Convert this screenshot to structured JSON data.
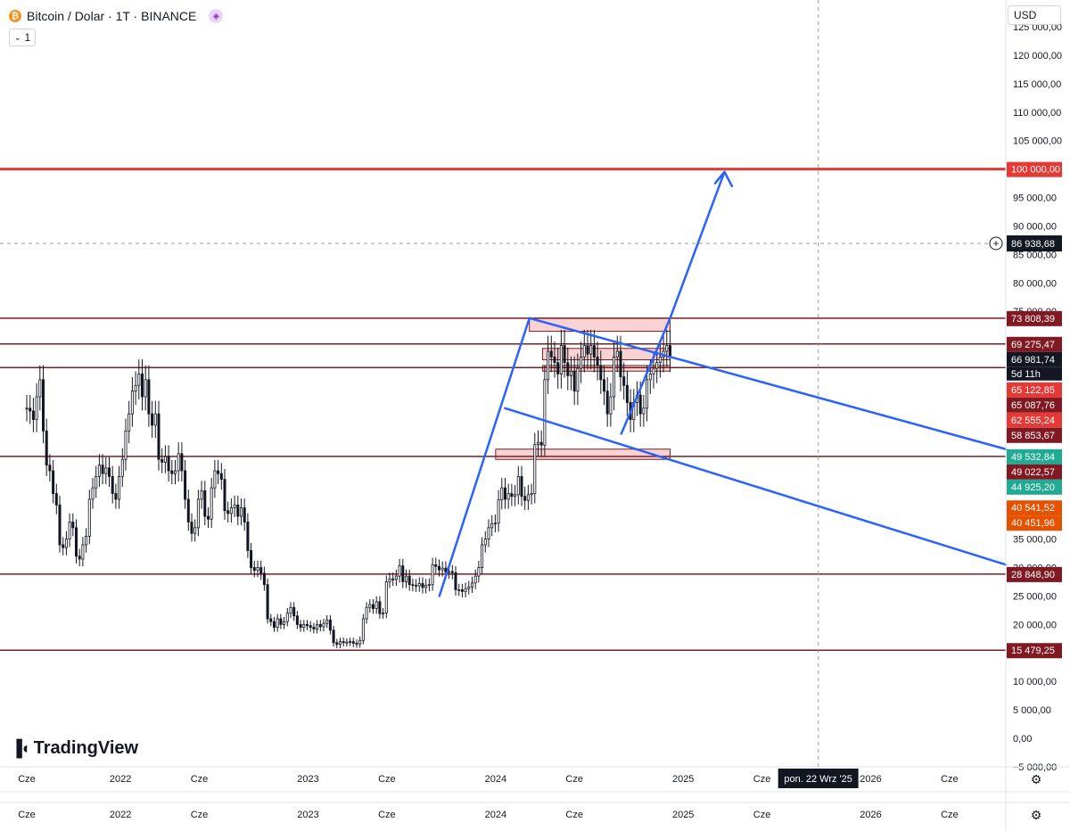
{
  "header": {
    "symbol_title": "Bitcoin / Dolar · 1T · BINANCE",
    "interval_chip": "1",
    "currency": "USD"
  },
  "branding": {
    "logo_text": "TradingView"
  },
  "crosshair": {
    "price_label": "86 938,68",
    "time_label": "pon. 22 Wrz '25"
  },
  "countdown": "5d 11h",
  "colors": {
    "up": "#131722",
    "down": "#131722",
    "resistance_red": "#e53935",
    "level_dark": "#7b1f1f",
    "channel_blue": "#2962ff",
    "zone_fill": "#f8c8c8",
    "price_tag_dark": "#131722",
    "tag_green": "#22ab94",
    "tag_orange": "#e65100",
    "tag_red": "#e53935",
    "tag_maroon": "#801922"
  },
  "chart_data": {
    "type": "candlestick",
    "title": "Bitcoin / Dolar · 1T · BINANCE",
    "timeframe": "1W",
    "ylim": [
      -5000,
      125000
    ],
    "y_ticks": [
      {
        "value": 125000,
        "label": "125 000,00"
      },
      {
        "value": 120000,
        "label": "120 000,00"
      },
      {
        "value": 115000,
        "label": "115 000,00"
      },
      {
        "value": 110000,
        "label": "110 000,00"
      },
      {
        "value": 105000,
        "label": "105 000,00"
      },
      {
        "value": 95000,
        "label": "95 000,00"
      },
      {
        "value": 90000,
        "label": "90 000,00"
      },
      {
        "value": 85000,
        "label": "85 000,00"
      },
      {
        "value": 80000,
        "label": "80 000,00"
      },
      {
        "value": 75000,
        "label": "75 000,00"
      },
      {
        "value": 35000,
        "label": "35 000,00"
      },
      {
        "value": 30000,
        "label": "30 000,00"
      },
      {
        "value": 25000,
        "label": "25 000,00"
      },
      {
        "value": 20000,
        "label": "20 000,00"
      },
      {
        "value": 10000,
        "label": "10 000,00"
      },
      {
        "value": 5000,
        "label": "5 000,00"
      },
      {
        "value": 0,
        "label": "0,00"
      },
      {
        "value": -5000,
        "label": "−5 000,00"
      }
    ],
    "x_ticks": [
      {
        "t": 2021.5,
        "label": "Cze"
      },
      {
        "t": 2022.0,
        "label": "2022"
      },
      {
        "t": 2022.42,
        "label": "Cze"
      },
      {
        "t": 2023.0,
        "label": "2023"
      },
      {
        "t": 2023.42,
        "label": "Cze"
      },
      {
        "t": 2024.0,
        "label": "2024"
      },
      {
        "t": 2024.42,
        "label": "Cze"
      },
      {
        "t": 2025.0,
        "label": "2025"
      },
      {
        "t": 2025.42,
        "label": "Cze"
      },
      {
        "t": 2026.0,
        "label": "2026"
      },
      {
        "t": 2026.42,
        "label": "Cze"
      }
    ],
    "x_ticks_lower": [
      {
        "t": 2021.5,
        "label": "Cze"
      },
      {
        "t": 2022.0,
        "label": "2022"
      },
      {
        "t": 2022.42,
        "label": "Cze"
      },
      {
        "t": 2023.0,
        "label": "2023"
      },
      {
        "t": 2023.42,
        "label": "Cze"
      },
      {
        "t": 2024.0,
        "label": "2024"
      },
      {
        "t": 2024.42,
        "label": "Cze"
      },
      {
        "t": 2025.0,
        "label": "2025"
      },
      {
        "t": 2025.42,
        "label": "Cze"
      },
      {
        "t": 2026.0,
        "label": "2026"
      },
      {
        "t": 2026.42,
        "label": "Cze"
      }
    ],
    "xlim": [
      2021.5,
      2026.72
    ],
    "price_tags": [
      {
        "value": 100000,
        "label": "100 000,00",
        "style": "red"
      },
      {
        "value": 73808.39,
        "label": "73 808,39",
        "style": "maroon"
      },
      {
        "value": 69275.47,
        "label": "69 275,47",
        "style": "maroon"
      },
      {
        "value": 66981.74,
        "label": "66 981,74",
        "style": "dark"
      },
      {
        "value": 65122.85,
        "label": "65 122,85",
        "style": "red"
      },
      {
        "value": 65087.76,
        "label": "65 087,76",
        "style": "maroon"
      },
      {
        "value": 62555.24,
        "label": "62 555,24",
        "style": "red"
      },
      {
        "value": 58853.67,
        "label": "58 853,67",
        "style": "maroon"
      },
      {
        "value": 49532.84,
        "label": "49 532,84",
        "style": "green"
      },
      {
        "value": 49022.57,
        "label": "49 022,57",
        "style": "maroon"
      },
      {
        "value": 44925.2,
        "label": "44 925,20",
        "style": "green"
      },
      {
        "value": 40541.52,
        "label": "40 541,52",
        "style": "orange"
      },
      {
        "value": 40451.96,
        "label": "40 451,96",
        "style": "orange"
      },
      {
        "value": 28848.9,
        "label": "28 848,90",
        "style": "maroon"
      },
      {
        "value": 15479.25,
        "label": "15 479,25",
        "style": "maroon"
      }
    ],
    "horizontal_levels": [
      {
        "value": 100000,
        "style": "red"
      },
      {
        "value": 73808.39,
        "style": "maroon"
      },
      {
        "value": 69275.47,
        "style": "maroon"
      },
      {
        "value": 65122.85,
        "style": "maroon"
      },
      {
        "value": 49532.84,
        "style": "maroon"
      },
      {
        "value": 28848.9,
        "style": "maroon"
      },
      {
        "value": 15479.25,
        "style": "maroon"
      }
    ],
    "zones": [
      {
        "t0": 2024.18,
        "t1": 2024.93,
        "v0": 71500,
        "v1": 73808
      },
      {
        "t0": 2024.25,
        "t1": 2024.93,
        "v0": 66500,
        "v1": 68500
      },
      {
        "t0": 2024.25,
        "t1": 2024.93,
        "v0": 64500,
        "v1": 65500
      },
      {
        "t0": 2024.0,
        "t1": 2024.93,
        "v0": 49000,
        "v1": 50800
      }
    ],
    "trendlines": [
      {
        "t0": 2023.7,
        "v0": 25000,
        "t1": 2024.18,
        "v1": 73808
      },
      {
        "t0": 2024.18,
        "v0": 73808,
        "t1": 2026.72,
        "v1": 50800
      },
      {
        "t0": 2024.05,
        "v0": 58000,
        "t1": 2026.72,
        "v1": 30500
      },
      {
        "t0": 2024.67,
        "v0": 53500,
        "t1": 2024.93,
        "v1": 73800
      },
      {
        "t0": 2024.93,
        "v0": 73800,
        "t1": 2025.22,
        "v1": 99500,
        "arrow": true
      },
      {
        "t0": 2025.22,
        "v0": 99500,
        "t1": 2025.17,
        "v1": 97500
      },
      {
        "t0": 2025.22,
        "v0": 99500,
        "t1": 2025.26,
        "v1": 97000
      }
    ],
    "crosshair": {
      "t": 2025.72,
      "value": 86938.68
    },
    "candles_weekly_close": [
      58000,
      57500,
      56000,
      60000,
      63000,
      54000,
      48000,
      47000,
      43000,
      41000,
      34000,
      33500,
      35000,
      38000,
      37000,
      32000,
      31500,
      34000,
      35500,
      42000,
      44000,
      46000,
      48000,
      46500,
      47500,
      46000,
      43000,
      42000,
      46000,
      49000,
      54000,
      57000,
      61000,
      62000,
      64000,
      60000,
      63000,
      57000,
      55000,
      57000,
      49000,
      48500,
      49500,
      47000,
      46500,
      47000,
      50000,
      47000,
      42000,
      38000,
      36000,
      37000,
      42000,
      43500,
      39000,
      38500,
      44000,
      47000,
      46500,
      45500,
      40000,
      39500,
      40500,
      41000,
      39000,
      40500,
      38000,
      33000,
      30000,
      29500,
      30000,
      29000,
      27000,
      21000,
      20500,
      19500,
      21000,
      20000,
      20500,
      22000,
      23000,
      21500,
      20000,
      19500,
      20000,
      19800,
      19500,
      19200,
      20000,
      19600,
      20200,
      20800,
      19000,
      16800,
      16500,
      17000,
      16800,
      16900,
      17000,
      16700,
      16600,
      17200,
      21000,
      23000,
      23500,
      22800,
      24000,
      21900,
      22000,
      27500,
      28000,
      27900,
      28500,
      30300,
      27500,
      28500,
      27000,
      26900,
      26800,
      27200,
      26500,
      26900,
      27000,
      30500,
      30200,
      29600,
      29900,
      29200,
      29300,
      29100,
      26100,
      26100,
      25800,
      26300,
      26600,
      27300,
      28500,
      30000,
      34000,
      35000,
      37000,
      37700,
      37800,
      41900,
      44000,
      42000,
      43000,
      42500,
      42800,
      46000,
      42500,
      41800,
      42800,
      43000,
      51600,
      52000,
      51500,
      63000,
      68000,
      67000,
      66000,
      64000,
      69000,
      66000,
      63700,
      64500,
      61000,
      65000,
      67000,
      69000,
      67500,
      69000,
      67000,
      65500,
      63000,
      61000,
      57000,
      60000,
      67000,
      68000,
      63500,
      62000,
      59000,
      56000,
      59000,
      60300,
      57000,
      58000,
      63000,
      64000,
      65000,
      66000,
      67000,
      68000,
      69000,
      67000
    ]
  }
}
